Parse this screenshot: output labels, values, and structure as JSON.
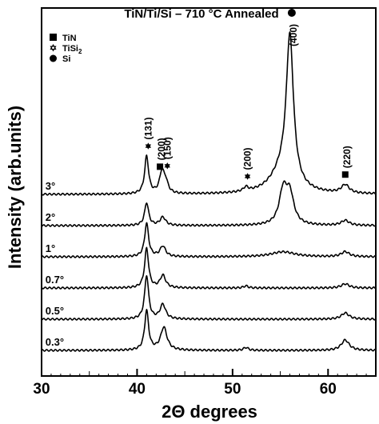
{
  "chart_data": {
    "type": "line",
    "title": "TiN/Ti/Si – 710 °C Annealed",
    "xlabel": "2Θ degrees",
    "ylabel": "Intensity (arb.units)",
    "xlim": [
      30,
      65
    ],
    "x_ticks": [
      "30",
      "40",
      "50",
      "60"
    ],
    "y_ticks_shown": false,
    "grid": false,
    "legend_position": "top-left",
    "legend": [
      {
        "marker": "filled-square",
        "label": "TiN"
      },
      {
        "marker": "hollow-star",
        "label": "TiSi",
        "subscript": "2"
      },
      {
        "marker": "filled-circle",
        "label": "Si"
      }
    ],
    "series": [
      {
        "label": "3°",
        "baseline": 3.75,
        "peaks": [
          {
            "x": 41.0,
            "h": 0.9,
            "w": 0.25
          },
          {
            "x": 42.6,
            "h": 0.5,
            "w": 0.3
          },
          {
            "x": 43.0,
            "h": 0.25,
            "w": 0.3
          },
          {
            "x": 51.4,
            "h": 0.1,
            "w": 0.3
          },
          {
            "x": 56.0,
            "h": 3.5,
            "w": 0.45
          },
          {
            "x": 55.2,
            "h": 0.5,
            "w": 1.5
          },
          {
            "x": 61.8,
            "h": 0.2,
            "w": 0.5
          }
        ]
      },
      {
        "label": "2°",
        "baseline": 3.0,
        "peaks": [
          {
            "x": 41.0,
            "h": 0.55,
            "w": 0.25
          },
          {
            "x": 42.7,
            "h": 0.2,
            "w": 0.35
          },
          {
            "x": 55.3,
            "h": 0.8,
            "w": 0.5
          },
          {
            "x": 56.0,
            "h": 0.7,
            "w": 0.5
          },
          {
            "x": 61.8,
            "h": 0.12,
            "w": 0.5
          }
        ]
      },
      {
        "label": "1°",
        "baseline": 2.25,
        "peaks": [
          {
            "x": 41.0,
            "h": 0.8,
            "w": 0.25
          },
          {
            "x": 42.7,
            "h": 0.25,
            "w": 0.35
          },
          {
            "x": 55.3,
            "h": 0.12,
            "w": 1.5
          },
          {
            "x": 61.8,
            "h": 0.12,
            "w": 0.5
          }
        ]
      },
      {
        "label": "0.7°",
        "baseline": 1.5,
        "peaks": [
          {
            "x": 41.0,
            "h": 0.95,
            "w": 0.25
          },
          {
            "x": 42.7,
            "h": 0.3,
            "w": 0.35
          },
          {
            "x": 51.4,
            "h": 0.05,
            "w": 0.3
          },
          {
            "x": 61.8,
            "h": 0.1,
            "w": 0.5
          }
        ]
      },
      {
        "label": "0.5°",
        "baseline": 0.75,
        "peaks": [
          {
            "x": 41.0,
            "h": 1.05,
            "w": 0.25
          },
          {
            "x": 42.7,
            "h": 0.35,
            "w": 0.35
          },
          {
            "x": 61.8,
            "h": 0.15,
            "w": 0.5
          }
        ]
      },
      {
        "label": "0.3°",
        "baseline": 0.0,
        "peaks": [
          {
            "x": 41.0,
            "h": 0.95,
            "w": 0.25
          },
          {
            "x": 42.8,
            "h": 0.55,
            "w": 0.4
          },
          {
            "x": 51.4,
            "h": 0.07,
            "w": 0.3
          },
          {
            "x": 61.8,
            "h": 0.25,
            "w": 0.5
          }
        ]
      }
    ],
    "peak_annotations": [
      {
        "label": "(131)",
        "x": 41.0,
        "marker": "hollow-star"
      },
      {
        "label": "(200)",
        "x": 42.4,
        "marker": "filled-square"
      },
      {
        "label": "(150)",
        "x": 43.0,
        "marker": "hollow-star"
      },
      {
        "label": "(200)",
        "x": 51.4,
        "marker": "hollow-star"
      },
      {
        "label": "(400)",
        "x": 56.2,
        "marker": "filled-circle"
      },
      {
        "label": "(220)",
        "x": 61.8,
        "marker": "filled-square"
      }
    ]
  }
}
